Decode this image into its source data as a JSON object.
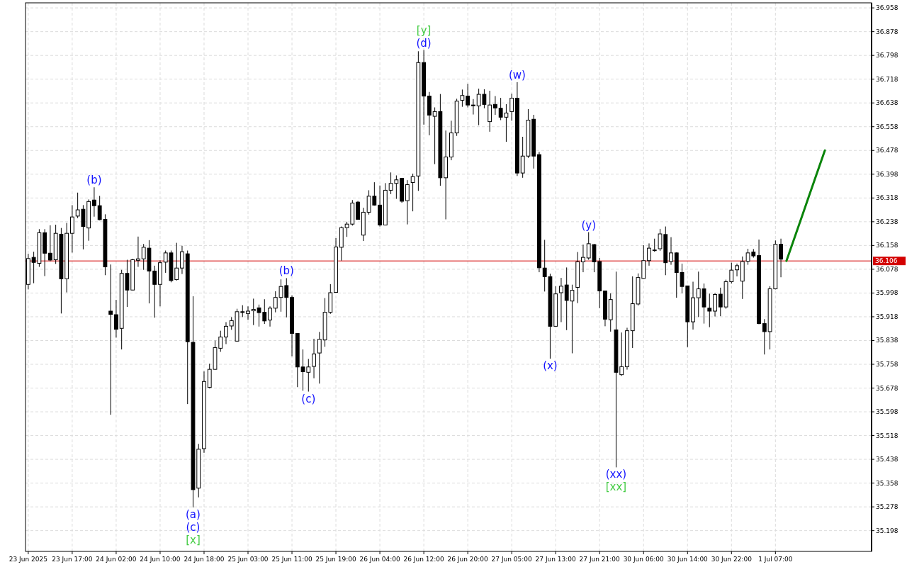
{
  "chart_data": {
    "type": "candlestick",
    "categories": [
      "23 Jun 2025",
      null,
      null,
      null,
      null,
      null,
      null,
      null,
      "23 Jun 17:00",
      null,
      null,
      null,
      null,
      null,
      null,
      null,
      "24 Jun 02:00",
      null,
      null,
      null,
      null,
      null,
      null,
      null,
      "24 Jun 10:00",
      null,
      null,
      null,
      null,
      null,
      null,
      null,
      "24 Jun 18:00",
      null,
      null,
      null,
      null,
      null,
      null,
      null,
      "25 Jun 03:00",
      null,
      null,
      null,
      null,
      null,
      null,
      null,
      "25 Jun 11:00",
      null,
      null,
      null,
      null,
      null,
      null,
      null,
      "25 Jun 19:00",
      null,
      null,
      null,
      null,
      null,
      null,
      null,
      "26 Jun 04:00",
      null,
      null,
      null,
      null,
      null,
      null,
      null,
      "26 Jun 12:00",
      null,
      null,
      null,
      null,
      null,
      null,
      null,
      "26 Jun 20:00",
      null,
      null,
      null,
      null,
      null,
      null,
      null,
      "27 Jun 05:00",
      null,
      null,
      null,
      null,
      null,
      null,
      null,
      "27 Jun 13:00",
      null,
      null,
      null,
      null,
      null,
      null,
      null,
      "27 Jun 21:00",
      null,
      null,
      null,
      null,
      null,
      null,
      null,
      "30 Jun 06:00",
      null,
      null,
      null,
      null,
      null,
      null,
      null,
      "30 Jun 14:00",
      null,
      null,
      null,
      null,
      null,
      null,
      null,
      "30 Jun 22:00",
      null,
      null,
      null,
      null,
      null,
      null,
      null,
      "1 Jul 07:00",
      null,
      null,
      null,
      null,
      null,
      null,
      null,
      null,
      null,
      null,
      null,
      null,
      null,
      null,
      null,
      null,
      null
    ],
    "ohlc": [
      [
        36.027,
        36.13,
        36.01,
        36.114
      ],
      [
        36.118,
        36.137,
        36.031,
        36.101
      ],
      [
        36.098,
        36.213,
        36.086,
        36.201
      ],
      [
        36.201,
        36.213,
        36.055,
        36.132
      ],
      [
        36.132,
        36.226,
        36.105,
        36.109
      ],
      [
        36.11,
        36.228,
        36.096,
        36.199
      ],
      [
        36.196,
        36.217,
        35.929,
        36.046
      ],
      [
        36.046,
        36.234,
        36.0,
        36.199
      ],
      [
        36.199,
        36.294,
        36.134,
        36.254
      ],
      [
        36.257,
        36.336,
        36.25,
        36.278
      ],
      [
        36.28,
        36.294,
        36.145,
        36.222
      ],
      [
        36.217,
        36.313,
        36.174,
        36.306
      ],
      [
        36.311,
        36.354,
        36.255,
        36.292
      ],
      [
        36.292,
        36.325,
        36.243,
        36.245
      ],
      [
        36.246,
        36.263,
        36.058,
        36.086
      ],
      [
        35.937,
        36.094,
        35.588,
        35.926
      ],
      [
        35.925,
        35.975,
        35.848,
        35.876
      ],
      [
        35.879,
        36.076,
        35.808,
        36.064
      ],
      [
        36.064,
        36.11,
        35.951,
        36.008
      ],
      [
        36.008,
        36.113,
        36.008,
        36.11
      ],
      [
        36.108,
        36.188,
        36.086,
        36.113
      ],
      [
        36.113,
        36.163,
        36.076,
        36.152
      ],
      [
        36.149,
        36.176,
        35.963,
        36.072
      ],
      [
        36.072,
        36.09,
        35.915,
        36.027
      ],
      [
        36.027,
        36.108,
        35.953,
        36.1
      ],
      [
        36.102,
        36.141,
        36.066,
        36.133
      ],
      [
        36.133,
        36.141,
        36.034,
        36.04
      ],
      [
        36.043,
        36.167,
        36.04,
        36.082
      ],
      [
        36.082,
        36.157,
        36.062,
        36.137
      ],
      [
        36.13,
        36.141,
        35.624,
        35.834
      ],
      [
        35.832,
        35.987,
        35.276,
        35.336
      ],
      [
        35.341,
        35.49,
        35.31,
        35.472
      ],
      [
        35.474,
        35.734,
        35.46,
        35.7
      ],
      [
        35.68,
        35.76,
        35.677,
        35.741
      ],
      [
        35.741,
        35.838,
        35.739,
        35.814
      ],
      [
        35.812,
        35.871,
        35.8,
        35.85
      ],
      [
        35.85,
        35.9,
        35.826,
        35.886
      ],
      [
        35.887,
        35.917,
        35.874,
        35.905
      ],
      [
        35.836,
        35.945,
        35.836,
        35.935
      ],
      [
        35.935,
        35.957,
        35.917,
        35.933
      ],
      [
        35.929,
        35.953,
        35.908,
        35.937
      ],
      [
        35.938,
        35.979,
        35.89,
        35.943
      ],
      [
        35.948,
        35.959,
        35.885,
        35.932
      ],
      [
        35.933,
        35.977,
        35.894,
        35.904
      ],
      [
        35.907,
        35.953,
        35.885,
        35.947
      ],
      [
        35.947,
        36.004,
        35.933,
        35.983
      ],
      [
        35.983,
        36.044,
        35.935,
        36.02
      ],
      [
        36.023,
        36.048,
        35.916,
        35.983
      ],
      [
        35.983,
        35.99,
        35.785,
        35.862
      ],
      [
        35.862,
        35.862,
        35.681,
        35.749
      ],
      [
        35.749,
        35.808,
        35.669,
        35.733
      ],
      [
        35.731,
        35.776,
        35.666,
        35.749
      ],
      [
        35.751,
        35.844,
        35.711,
        35.793
      ],
      [
        35.796,
        35.867,
        35.693,
        35.842
      ],
      [
        35.84,
        35.981,
        35.817,
        35.933
      ],
      [
        35.933,
        36.028,
        35.928,
        35.999
      ],
      [
        36.0,
        36.183,
        36.0,
        36.153
      ],
      [
        36.152,
        36.222,
        36.107,
        36.218
      ],
      [
        36.218,
        36.238,
        36.187,
        36.23
      ],
      [
        36.23,
        36.311,
        36.225,
        36.301
      ],
      [
        36.304,
        36.308,
        36.245,
        36.246
      ],
      [
        36.193,
        36.285,
        36.173,
        36.27
      ],
      [
        36.27,
        36.344,
        36.262,
        36.324
      ],
      [
        36.324,
        36.371,
        36.292,
        36.294
      ],
      [
        36.294,
        36.36,
        36.222,
        36.227
      ],
      [
        36.227,
        36.368,
        36.227,
        36.344
      ],
      [
        36.344,
        36.404,
        36.331,
        36.367
      ],
      [
        36.367,
        36.394,
        36.315,
        36.379
      ],
      [
        36.384,
        36.384,
        36.302,
        36.307
      ],
      [
        36.309,
        36.378,
        36.229,
        36.363
      ],
      [
        36.37,
        36.4,
        36.273,
        36.39
      ],
      [
        36.392,
        36.812,
        36.342,
        36.774
      ],
      [
        36.774,
        36.816,
        36.565,
        36.661
      ],
      [
        36.661,
        36.675,
        36.529,
        36.597
      ],
      [
        36.593,
        36.623,
        36.432,
        36.609
      ],
      [
        36.609,
        36.668,
        36.359,
        36.386
      ],
      [
        36.386,
        36.545,
        36.246,
        36.456
      ],
      [
        36.456,
        36.578,
        36.445,
        36.537
      ],
      [
        36.537,
        36.652,
        36.527,
        36.644
      ],
      [
        36.647,
        36.683,
        36.625,
        36.663
      ],
      [
        36.661,
        36.702,
        36.623,
        36.631
      ],
      [
        36.631,
        36.651,
        36.599,
        36.63
      ],
      [
        36.628,
        36.686,
        36.563,
        36.667
      ],
      [
        36.667,
        36.684,
        36.62,
        36.633
      ],
      [
        36.575,
        36.679,
        36.541,
        36.631
      ],
      [
        36.633,
        36.661,
        36.598,
        36.621
      ],
      [
        36.62,
        36.655,
        36.58,
        36.59
      ],
      [
        36.59,
        36.634,
        36.507,
        36.604
      ],
      [
        36.609,
        36.669,
        36.578,
        36.654
      ],
      [
        36.654,
        36.708,
        36.392,
        36.402
      ],
      [
        36.402,
        36.524,
        36.386,
        36.459
      ],
      [
        36.459,
        36.617,
        36.453,
        36.58
      ],
      [
        36.583,
        36.598,
        36.417,
        36.459
      ],
      [
        36.464,
        36.473,
        36.068,
        36.083
      ],
      [
        36.082,
        36.177,
        36.003,
        36.053
      ],
      [
        36.053,
        36.063,
        35.777,
        35.886
      ],
      [
        35.886,
        36.021,
        35.886,
        35.995
      ],
      [
        35.999,
        36.049,
        35.9,
        36.021
      ],
      [
        36.025,
        36.084,
        35.873,
        35.973
      ],
      [
        35.971,
        36.026,
        35.795,
        36.007
      ],
      [
        36.017,
        36.136,
        35.964,
        36.103
      ],
      [
        36.103,
        36.161,
        36.068,
        36.118
      ],
      [
        36.116,
        36.203,
        36.11,
        36.164
      ],
      [
        36.161,
        36.163,
        36.068,
        36.103
      ],
      [
        36.104,
        36.116,
        35.947,
        36.005
      ],
      [
        36.005,
        36.005,
        35.886,
        35.91
      ],
      [
        35.908,
        35.997,
        35.868,
        35.976
      ],
      [
        35.874,
        36.07,
        35.411,
        35.731
      ],
      [
        35.723,
        35.865,
        35.719,
        35.75
      ],
      [
        35.75,
        35.881,
        35.74,
        35.871
      ],
      [
        35.871,
        36.054,
        35.813,
        35.962
      ],
      [
        35.961,
        36.064,
        35.956,
        36.05
      ],
      [
        36.047,
        36.159,
        36.046,
        36.107
      ],
      [
        36.107,
        36.165,
        36.09,
        36.149
      ],
      [
        36.141,
        36.181,
        36.137,
        36.143
      ],
      [
        36.147,
        36.214,
        36.14,
        36.197
      ],
      [
        36.195,
        36.222,
        36.058,
        36.1
      ],
      [
        36.104,
        36.186,
        36.093,
        36.133
      ],
      [
        36.133,
        36.135,
        35.982,
        36.067
      ],
      [
        36.067,
        36.097,
        35.997,
        36.02
      ],
      [
        36.022,
        36.022,
        35.816,
        35.901
      ],
      [
        35.901,
        36.036,
        35.875,
        35.982
      ],
      [
        35.982,
        36.07,
        35.917,
        36.012
      ],
      [
        36.012,
        36.03,
        35.895,
        35.951
      ],
      [
        35.947,
        35.996,
        35.883,
        35.937
      ],
      [
        35.937,
        35.998,
        35.919,
        35.993
      ],
      [
        35.994,
        36.016,
        35.92,
        35.951
      ],
      [
        35.951,
        36.043,
        35.945,
        36.036
      ],
      [
        36.036,
        36.1,
        36.03,
        36.075
      ],
      [
        36.076,
        36.097,
        36.054,
        36.09
      ],
      [
        36.038,
        36.121,
        35.978,
        36.104
      ],
      [
        36.105,
        36.147,
        36.093,
        36.133
      ],
      [
        36.136,
        36.146,
        36.117,
        36.123
      ],
      [
        36.124,
        36.178,
        35.893,
        35.895
      ],
      [
        35.895,
        35.91,
        35.791,
        35.868
      ],
      [
        35.868,
        36.021,
        35.808,
        36.012
      ],
      [
        36.012,
        36.175,
        36.01,
        36.162
      ],
      [
        36.162,
        36.181,
        36.051,
        36.112
      ],
      null,
      null,
      null,
      null,
      null,
      null,
      null,
      null,
      null,
      null,
      null,
      null,
      null,
      null,
      null,
      null
    ],
    "series": [
      {
        "type": "line",
        "color": "#0a840a",
        "values": [
          null,
          null,
          null,
          null,
          null,
          null,
          null,
          null,
          null,
          null,
          null,
          null,
          null,
          null,
          null,
          null,
          null,
          null,
          null,
          null,
          null,
          null,
          null,
          null,
          null,
          null,
          null,
          null,
          null,
          null,
          null,
          null,
          null,
          null,
          null,
          null,
          null,
          null,
          null,
          null,
          null,
          null,
          null,
          null,
          null,
          null,
          null,
          null,
          null,
          null,
          null,
          null,
          null,
          null,
          null,
          null,
          null,
          null,
          null,
          null,
          null,
          null,
          null,
          null,
          null,
          null,
          null,
          null,
          null,
          null,
          null,
          null,
          null,
          null,
          null,
          null,
          null,
          null,
          null,
          null,
          null,
          null,
          null,
          null,
          null,
          null,
          null,
          null,
          null,
          null,
          null,
          null,
          null,
          null,
          null,
          null,
          null,
          null,
          null,
          null,
          null,
          null,
          null,
          null,
          null,
          null,
          null,
          null,
          null,
          null,
          null,
          null,
          null,
          null,
          null,
          null,
          null,
          null,
          null,
          null,
          null,
          null,
          null,
          null,
          null,
          null,
          null,
          null,
          null,
          null,
          null,
          null,
          null,
          null,
          null,
          null,
          null,
          null,
          36.106,
          36.159,
          36.212,
          36.265,
          36.319,
          36.372,
          36.425,
          36.478,
          null,
          null,
          null,
          null,
          null,
          null,
          null,
          null
        ]
      }
    ],
    "ylim": [
      35.128,
      36.975
    ],
    "yticks": [
      35.198,
      35.278,
      35.358,
      35.438,
      35.518,
      35.598,
      35.678,
      35.758,
      35.838,
      35.918,
      35.998,
      36.078,
      36.158,
      36.238,
      36.318,
      36.398,
      36.478,
      36.558,
      36.638,
      36.718,
      36.798,
      36.878,
      36.958
    ],
    "grid": true,
    "ref_lines": [
      {
        "axis": "y",
        "value": 36.106,
        "label": "36.106",
        "color": "#d40000"
      }
    ],
    "annotations": [
      {
        "text": "(b)",
        "y": 36.354
      },
      {
        "text": "(a)",
        "y": 35.276
      },
      {
        "text": "(c)",
        "y": 35.276
      },
      {
        "text": "[x]",
        "y": 35.276
      },
      {
        "text": "(b)",
        "y": 36.048
      },
      {
        "text": "(c)",
        "y": 35.666
      },
      {
        "text": "[y]",
        "y": 36.816
      },
      {
        "text": "(d)",
        "y": 36.816
      },
      {
        "text": "(w)",
        "y": 36.708
      },
      {
        "text": "(x)",
        "y": 35.777
      },
      {
        "text": "(y)",
        "y": 36.203
      },
      {
        "text": "(xx)",
        "y": 35.411
      },
      {
        "text": "[xx]",
        "y": 35.411
      }
    ]
  }
}
